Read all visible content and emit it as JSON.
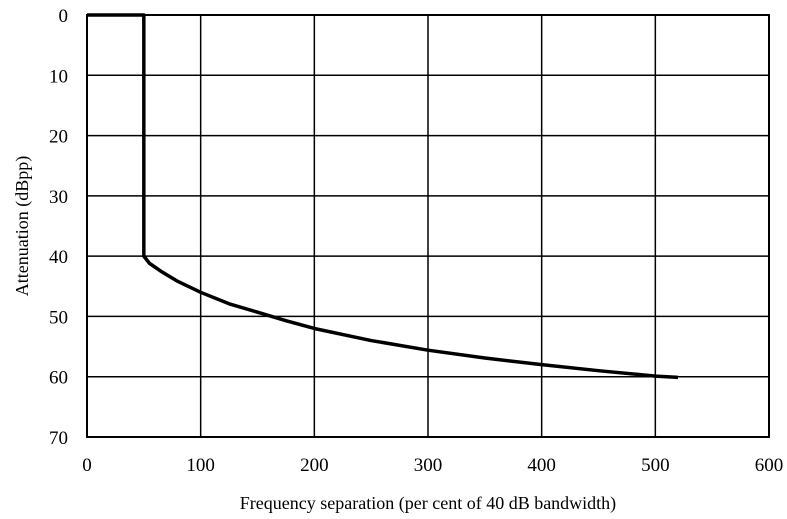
{
  "chart_data": {
    "type": "line",
    "title": "",
    "xlabel": "Frequency separation (per cent of 40 dB bandwidth)",
    "ylabel": "Attenuation (dBpp)",
    "xlim": [
      0,
      600
    ],
    "ylim": [
      0,
      70
    ],
    "y_inverted": true,
    "grid": true,
    "xticks": [
      "0",
      "100",
      "200",
      "300",
      "400",
      "500",
      "600"
    ],
    "yticks": [
      "0",
      "10",
      "20",
      "30",
      "40",
      "50",
      "60",
      "70"
    ],
    "series": [
      {
        "color": "#000000",
        "x": [
          0,
          50,
          50,
          55,
          65,
          80,
          100,
          125,
          150,
          175,
          200,
          250,
          300,
          350,
          400,
          450,
          500,
          520
        ],
        "y": [
          0,
          0,
          40,
          41.2,
          42.5,
          44.2,
          46.0,
          47.9,
          49.3,
          50.7,
          52.0,
          54.0,
          55.6,
          56.9,
          58.0,
          59.0,
          59.9,
          60.1
        ]
      }
    ]
  }
}
